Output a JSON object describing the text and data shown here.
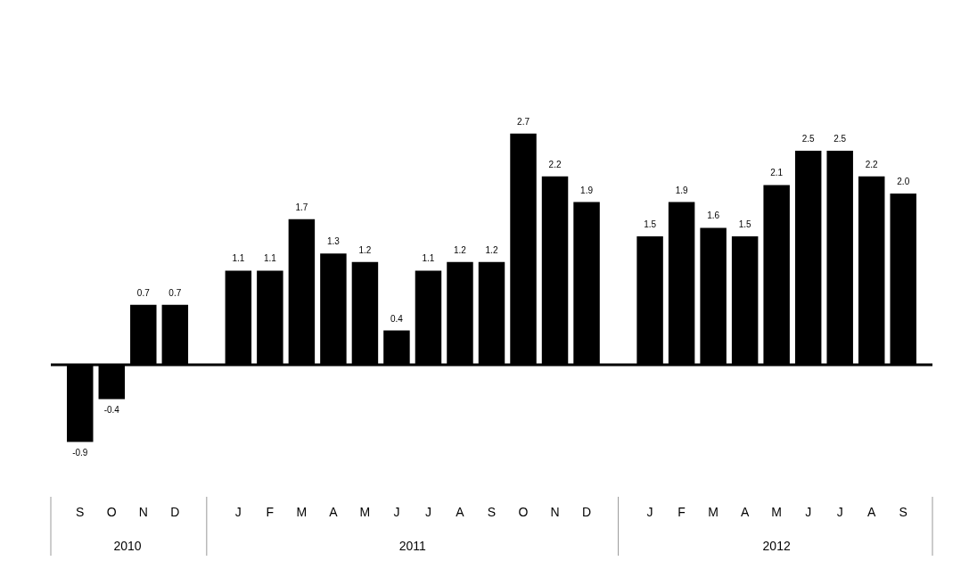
{
  "chart_data": {
    "type": "bar",
    "categories": [
      "S",
      "O",
      "N",
      "D",
      null,
      "J",
      "F",
      "M",
      "A",
      "M",
      "J",
      "J",
      "A",
      "S",
      "O",
      "N",
      "D",
      null,
      "J",
      "F",
      "M",
      "A",
      "M",
      "J",
      "J",
      "A",
      "S"
    ],
    "values": [
      -0.9,
      -0.4,
      0.7,
      0.7,
      null,
      1.1,
      1.1,
      1.7,
      1.3,
      1.2,
      0.4,
      1.1,
      1.2,
      1.2,
      2.7,
      2.2,
      1.9,
      null,
      1.5,
      1.9,
      1.6,
      1.5,
      2.1,
      2.5,
      2.5,
      2.2,
      2.0
    ],
    "value_labels": [
      "-0.9",
      "-0.4",
      "0.7",
      "0.7",
      null,
      "1.1",
      "1.1",
      "1.7",
      "1.3",
      "1.2",
      "0.4",
      "1.1",
      "1.2",
      "1.2",
      "2.7",
      "2.2",
      "1.9",
      null,
      "1.5",
      "1.9",
      "1.6",
      "1.5",
      "2.1",
      "2.5",
      "2.5",
      "2.2",
      "2.0"
    ],
    "color": "#000000",
    "grid": false,
    "annotations": [
      "2010",
      "2011",
      "2012"
    ]
  }
}
